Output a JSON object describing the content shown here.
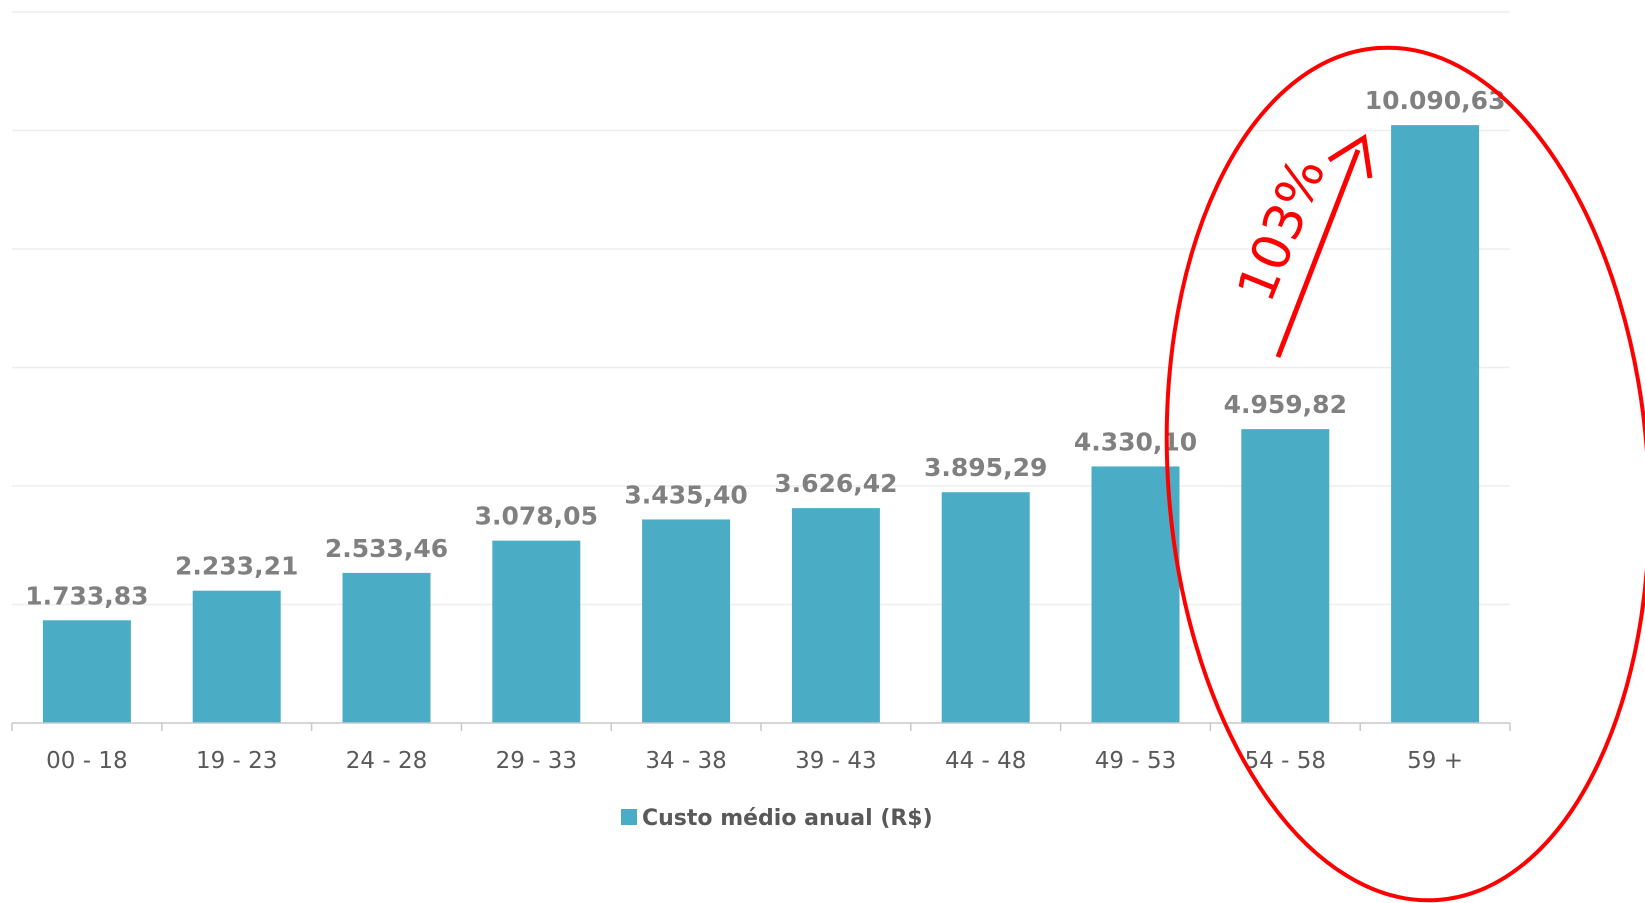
{
  "chart_data": {
    "type": "bar",
    "categories": [
      "00 - 18",
      "19 - 23",
      "24 - 28",
      "29 - 33",
      "34 - 38",
      "39 - 43",
      "44 - 48",
      "49 - 53",
      "54 - 58",
      "59 +"
    ],
    "series": [
      {
        "name": "Custo médio anual (R$)",
        "values": [
          1733.83,
          2233.21,
          2533.46,
          3078.05,
          3435.4,
          3626.42,
          3895.29,
          4330.1,
          4959.82,
          10090.63
        ],
        "labels": [
          "1.733,83",
          "2.233,21",
          "2.533,46",
          "3.078,05",
          "3.435,40",
          "3.626,42",
          "3.895,29",
          "4.330,10",
          "4.959,82",
          "10.090,63"
        ],
        "color": "#4bacc6"
      }
    ],
    "ylim": [
      0,
      12000
    ],
    "grid": true,
    "legend_position": "bottom",
    "annotation": {
      "text": "103%",
      "color": "#ff0000",
      "from_category": "54 - 58",
      "to_category": "59 +"
    }
  }
}
